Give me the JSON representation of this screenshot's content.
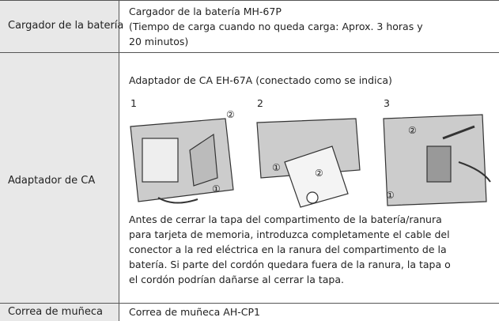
{
  "table": {
    "rows": [
      {
        "label": "Cargador de la batería",
        "lines": [
          "Cargador de la batería MH-67P",
          "(Tiempo de carga cuando no queda carga: Aprox. 3 horas y",
          "20 minutos)"
        ]
      },
      {
        "label": "Adaptador de CA",
        "intro": "Adaptador de CA EH-67A (conectado como se indica)",
        "steps": [
          {
            "number": "1",
            "callouts": [
              "②",
              "①"
            ]
          },
          {
            "number": "2",
            "callouts": [
              "①",
              "②"
            ]
          },
          {
            "number": "3",
            "callouts": [
              "②",
              "①"
            ]
          }
        ],
        "lines": [
          "Antes de cerrar la tapa del compartimento de la batería/ranura",
          "para tarjeta de memoria, introduzca completamente el cable del",
          "conector a la red eléctrica en la ranura del compartimento de la",
          "batería. Si parte del cordón quedara fuera de la ranura, la tapa o",
          "el cordón podrían dañarse al cerrar la tapa."
        ]
      },
      {
        "label": "Correa de muñeca",
        "lines": [
          "Correa de muñeca AH-CP1"
        ]
      }
    ]
  }
}
